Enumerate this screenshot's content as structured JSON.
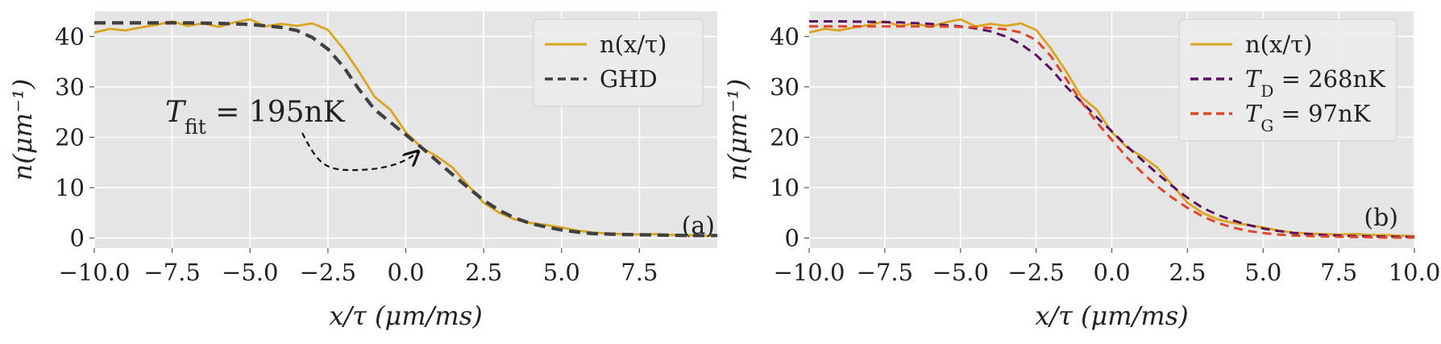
{
  "chart_data": [
    {
      "panel_label": "(a)",
      "type": "line",
      "xlabel": "x/τ (μm/ms)",
      "ylabel": "n(μm⁻¹)",
      "xlim": [
        -10,
        10
      ],
      "ylim": [
        -2,
        45
      ],
      "x_ticks": [
        "−10.0",
        "−7.5",
        "−5.0",
        "−2.5",
        "0.0",
        "2.5",
        "5.0",
        "7.5"
      ],
      "x_tick_values": [
        -10,
        -7.5,
        -5,
        -2.5,
        0,
        2.5,
        5,
        7.5
      ],
      "y_ticks": [
        "0",
        "10",
        "20",
        "30",
        "40"
      ],
      "y_tick_values": [
        0,
        10,
        20,
        30,
        40
      ],
      "grid": true,
      "legend_position": "top-right",
      "annotation": {
        "text": "T_fit = 195nK",
        "points_to_x": 0.5
      },
      "series": [
        {
          "name": "n(x/τ)",
          "color": "#daa520",
          "style": "solid",
          "x": [
            -10,
            -9.5,
            -9,
            -8.5,
            -8,
            -7.5,
            -7,
            -6.5,
            -6,
            -5.5,
            -5,
            -4.5,
            -4,
            -3.5,
            -3,
            -2.5,
            -2,
            -1.5,
            -1,
            -0.5,
            0,
            0.5,
            1,
            1.5,
            2,
            2.5,
            3,
            3.5,
            4,
            4.5,
            5,
            5.5,
            6,
            6.5,
            7,
            7.5,
            8,
            8.5,
            9,
            9.5,
            10
          ],
          "y": [
            40.8,
            41.5,
            41.2,
            41.8,
            42.3,
            43.0,
            42.1,
            42.6,
            41.9,
            42.8,
            43.4,
            42.0,
            42.5,
            42.1,
            42.6,
            41.3,
            37.5,
            33.0,
            28.0,
            25.5,
            21.0,
            18.0,
            16.2,
            14.0,
            10.5,
            7.0,
            5.0,
            3.7,
            3.0,
            2.6,
            2.1,
            1.5,
            1.1,
            0.9,
            0.8,
            0.7,
            0.8,
            0.6,
            0.6,
            0.5,
            0.4
          ]
        },
        {
          "name": "GHD",
          "color": "#404040",
          "style": "dashed",
          "x": [
            -10,
            -9,
            -8,
            -7,
            -6,
            -5,
            -4,
            -3.5,
            -3,
            -2.5,
            -2,
            -1.5,
            -1,
            -0.5,
            0,
            0.5,
            1,
            1.5,
            2,
            2.5,
            3,
            3.5,
            4,
            4.5,
            5,
            5.5,
            6,
            7,
            8,
            9,
            10
          ],
          "y": [
            42.7,
            42.7,
            42.7,
            42.7,
            42.6,
            42.4,
            41.8,
            41.2,
            39.8,
            37.5,
            34.0,
            29.5,
            25.5,
            23.0,
            20.5,
            18.0,
            15.3,
            12.6,
            10.0,
            7.5,
            5.5,
            4.0,
            2.9,
            2.2,
            1.6,
            1.2,
            0.9,
            0.7,
            0.6,
            0.5,
            0.5
          ]
        }
      ]
    },
    {
      "panel_label": "(b)",
      "type": "line",
      "xlabel": "x/τ (μm/ms)",
      "ylabel": "n(μm⁻¹)",
      "xlim": [
        -10,
        10
      ],
      "ylim": [
        -2,
        45
      ],
      "x_ticks": [
        "−10.0",
        "−7.5",
        "−5.0",
        "−2.5",
        "0.0",
        "2.5",
        "5.0",
        "7.5",
        "10.0"
      ],
      "x_tick_values": [
        -10,
        -7.5,
        -5,
        -2.5,
        0,
        2.5,
        5,
        7.5,
        10
      ],
      "y_ticks": [
        "0",
        "10",
        "20",
        "30",
        "40"
      ],
      "y_tick_values": [
        0,
        10,
        20,
        30,
        40
      ],
      "grid": true,
      "legend_position": "top-right",
      "series": [
        {
          "name": "n(x/τ)",
          "color": "#daa520",
          "style": "solid",
          "x": [
            -10,
            -9.5,
            -9,
            -8.5,
            -8,
            -7.5,
            -7,
            -6.5,
            -6,
            -5.5,
            -5,
            -4.5,
            -4,
            -3.5,
            -3,
            -2.5,
            -2,
            -1.5,
            -1,
            -0.5,
            0,
            0.5,
            1,
            1.5,
            2,
            2.5,
            3,
            3.5,
            4,
            4.5,
            5,
            5.5,
            6,
            6.5,
            7,
            7.5,
            8,
            8.5,
            9,
            9.5,
            10
          ],
          "y": [
            40.8,
            41.5,
            41.2,
            41.8,
            42.3,
            43.0,
            42.1,
            42.6,
            41.9,
            42.8,
            43.4,
            42.0,
            42.5,
            42.1,
            42.6,
            41.3,
            37.5,
            33.0,
            28.0,
            25.5,
            21.0,
            18.0,
            16.2,
            14.0,
            10.5,
            7.0,
            5.0,
            3.7,
            3.0,
            2.6,
            2.1,
            1.5,
            1.1,
            0.9,
            0.8,
            0.7,
            0.8,
            0.6,
            0.6,
            0.5,
            0.4
          ]
        },
        {
          "name": "T_D = 268nK",
          "color": "#5a1060",
          "style": "dashed",
          "x": [
            -10,
            -9,
            -8,
            -7,
            -6,
            -5,
            -4.5,
            -4,
            -3.5,
            -3,
            -2.5,
            -2,
            -1.5,
            -1,
            -0.5,
            0,
            0.5,
            1,
            1.5,
            2,
            2.5,
            3,
            3.5,
            4,
            4.5,
            5,
            5.5,
            6,
            7,
            8,
            9,
            10
          ],
          "y": [
            43.0,
            43.0,
            42.9,
            42.8,
            42.5,
            42.0,
            41.6,
            41.0,
            40.0,
            38.5,
            36.3,
            33.5,
            30.0,
            27.0,
            24.0,
            21.2,
            18.2,
            15.5,
            12.8,
            10.3,
            8.0,
            6.0,
            4.6,
            3.5,
            2.6,
            1.9,
            1.4,
            1.0,
            0.6,
            0.4,
            0.3,
            0.2
          ]
        },
        {
          "name": "T_G = 97nK",
          "color": "#e0482a",
          "style": "dashed",
          "x": [
            -10,
            -9,
            -8,
            -7,
            -6,
            -5,
            -4,
            -3.5,
            -3,
            -2.5,
            -2,
            -1.5,
            -1,
            -0.5,
            0,
            0.5,
            1,
            1.5,
            2,
            2.5,
            3,
            3.5,
            4,
            4.5,
            5,
            5.5,
            6,
            7,
            8,
            9,
            10
          ],
          "y": [
            42.0,
            42.0,
            42.0,
            42.0,
            42.0,
            41.9,
            41.7,
            41.4,
            40.8,
            39.3,
            36.0,
            31.5,
            27.0,
            23.0,
            19.5,
            16.0,
            13.0,
            10.3,
            8.0,
            6.0,
            4.3,
            3.0,
            2.1,
            1.4,
            1.0,
            0.7,
            0.5,
            0.3,
            0.2,
            0.1,
            0.1
          ]
        }
      ]
    }
  ]
}
